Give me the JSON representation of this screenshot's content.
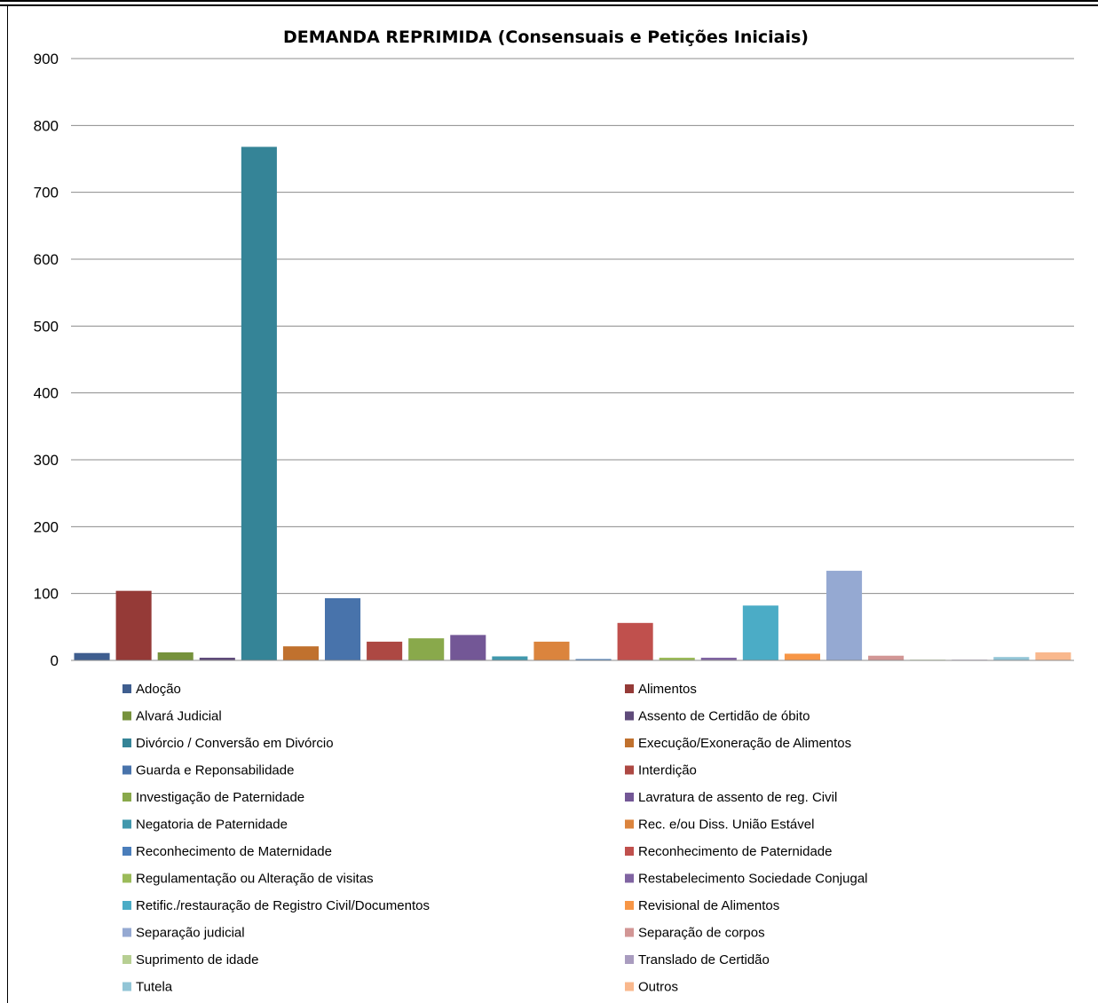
{
  "chart_data": {
    "type": "bar",
    "title": "DEMANDA REPRIMIDA (Consensuais e Petições Iniciais)",
    "xlabel": "",
    "ylabel": "",
    "ylim": [
      0,
      900
    ],
    "yticks": [
      0,
      100,
      200,
      300,
      400,
      500,
      600,
      700,
      800,
      900
    ],
    "grid": true,
    "legend_position": "bottom",
    "series": [
      {
        "name": "Adoção",
        "value": 11,
        "color": "#3f5e8f"
      },
      {
        "name": "Alimentos",
        "value": 104,
        "color": "#953a37"
      },
      {
        "name": "Alvará Judicial",
        "value": 12,
        "color": "#76923c"
      },
      {
        "name": "Assento de Certidão de óbito",
        "value": 4,
        "color": "#5f4b7a"
      },
      {
        "name": "Divórcio / Conversão em Divórcio",
        "value": 768,
        "color": "#358497"
      },
      {
        "name": "Execução/Exoneração de Alimentos",
        "value": 21,
        "color": "#c0712e"
      },
      {
        "name": "Guarda e Reponsabilidade",
        "value": 93,
        "color": "#4873ab"
      },
      {
        "name": "Interdição",
        "value": 28,
        "color": "#ad4843"
      },
      {
        "name": "Investigação de Paternidade",
        "value": 33,
        "color": "#89a94b"
      },
      {
        "name": "Lavratura de assento de reg. Civil",
        "value": 38,
        "color": "#735796"
      },
      {
        "name": "Negatoria de Paternidade",
        "value": 6,
        "color": "#4198ad"
      },
      {
        "name": "Rec. e/ou Diss. União Estável",
        "value": 28,
        "color": "#db843d"
      },
      {
        "name": "Reconhecimento de Maternidade",
        "value": 2,
        "color": "#4a7ebb"
      },
      {
        "name": "Reconhecimento de Paternidade",
        "value": 56,
        "color": "#c0504d"
      },
      {
        "name": "Regulamentação ou Alteração de visitas",
        "value": 4,
        "color": "#9bbb59"
      },
      {
        "name": "Restabelecimento Sociedade Conjugal",
        "value": 4,
        "color": "#8064a2"
      },
      {
        "name": "Retific./restauração de Registro Civil/Documentos",
        "value": 82,
        "color": "#4bacc6"
      },
      {
        "name": "Revisional de Alimentos",
        "value": 10,
        "color": "#f79646"
      },
      {
        "name": "Separação judicial",
        "value": 134,
        "color": "#95a9d2"
      },
      {
        "name": "Separação de corpos",
        "value": 7,
        "color": "#d29695"
      },
      {
        "name": "Suprimento de idade",
        "value": 1,
        "color": "#b7cf93"
      },
      {
        "name": "Translado de Certidão",
        "value": 1,
        "color": "#a99cbf"
      },
      {
        "name": "Tutela",
        "value": 5,
        "color": "#92c5d6"
      },
      {
        "name": "Outros",
        "value": 12,
        "color": "#f9b88d"
      }
    ]
  }
}
